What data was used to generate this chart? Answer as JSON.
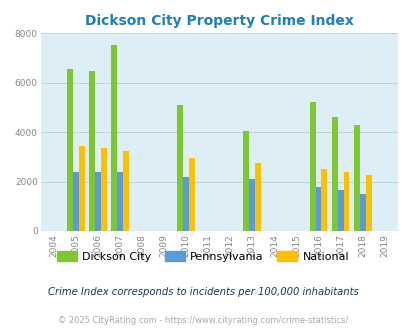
{
  "title": "Dickson City Property Crime Index",
  "subtitle": "Crime Index corresponds to incidents per 100,000 inhabitants",
  "footer": "© 2025 CityRating.com - https://www.cityrating.com/crime-statistics/",
  "years": [
    2004,
    2005,
    2006,
    2007,
    2008,
    2009,
    2010,
    2011,
    2012,
    2013,
    2014,
    2015,
    2016,
    2017,
    2018,
    2019
  ],
  "dickson_city": [
    0,
    6550,
    6450,
    7500,
    0,
    0,
    5100,
    0,
    0,
    4050,
    0,
    0,
    5200,
    4600,
    4300,
    0
  ],
  "pennsylvania": [
    0,
    2400,
    2400,
    2380,
    0,
    0,
    2200,
    0,
    0,
    2100,
    0,
    0,
    1780,
    1650,
    1480,
    0
  ],
  "national": [
    0,
    3450,
    3350,
    3250,
    0,
    0,
    2950,
    0,
    0,
    2750,
    0,
    0,
    2500,
    2400,
    2250,
    0
  ],
  "color_city": "#7dc832",
  "color_pa": "#5b9bd5",
  "color_nat": "#ffc000",
  "bg_color": "#ddeef6",
  "title_color": "#1f7ec0",
  "ylim": [
    0,
    8000
  ],
  "yticks": [
    0,
    2000,
    4000,
    6000,
    8000
  ],
  "bar_width": 0.27,
  "grid_color": "#b8cfd8",
  "subtitle_color": "#1a3a5c",
  "footer_color": "#aaaaaa"
}
